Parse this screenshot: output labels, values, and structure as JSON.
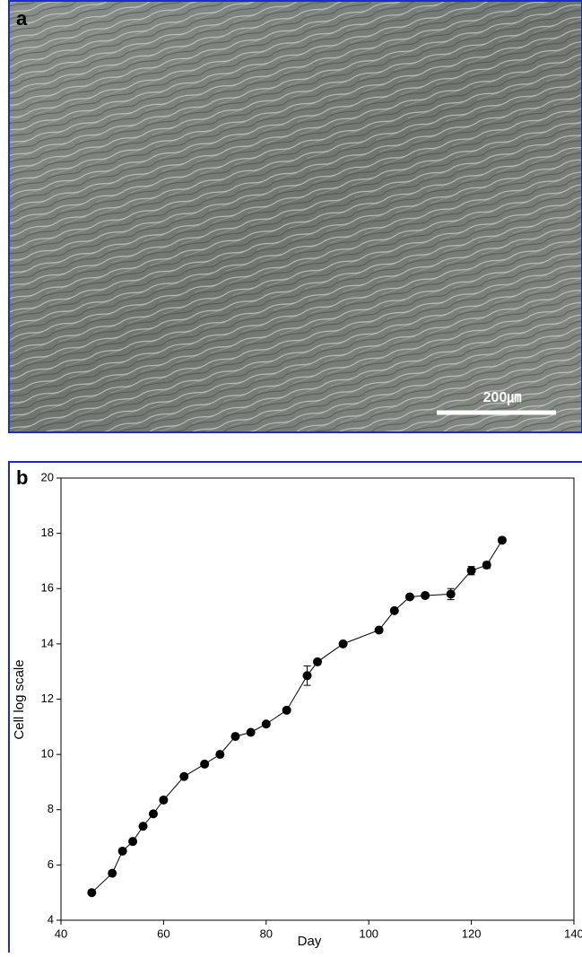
{
  "panel_a": {
    "label": "a",
    "scale_bar": "200㎛"
  },
  "chart_data": {
    "type": "line",
    "panel_label": "b",
    "xlabel": "Day",
    "ylabel": "Cell log scale",
    "x": [
      46,
      50,
      52,
      54,
      56,
      58,
      60,
      64,
      68,
      71,
      74,
      77,
      80,
      84,
      88,
      90,
      95,
      102,
      105,
      108,
      111,
      116,
      120,
      123,
      126
    ],
    "values": [
      5.0,
      5.7,
      6.5,
      6.85,
      7.4,
      7.85,
      8.35,
      9.2,
      9.65,
      10.0,
      10.65,
      10.8,
      11.1,
      11.6,
      12.85,
      13.35,
      14.0,
      14.5,
      15.2,
      15.7,
      15.75,
      15.8,
      16.65,
      16.85,
      17.75
    ],
    "errors": [
      0.05,
      0.05,
      0.05,
      0.05,
      0.05,
      0.05,
      0.05,
      0.05,
      0.05,
      0.05,
      0.05,
      0.05,
      0.05,
      0.05,
      0.35,
      0.05,
      0.05,
      0.05,
      0.05,
      0.05,
      0.05,
      0.2,
      0.15,
      0.12,
      0.05
    ],
    "color": "#000000",
    "xlim": [
      40,
      140
    ],
    "xticks": [
      40,
      60,
      80,
      100,
      120,
      140
    ],
    "ylim": [
      4,
      20
    ],
    "yticks": [
      4,
      6,
      8,
      10,
      12,
      14,
      16,
      18,
      20
    ]
  }
}
